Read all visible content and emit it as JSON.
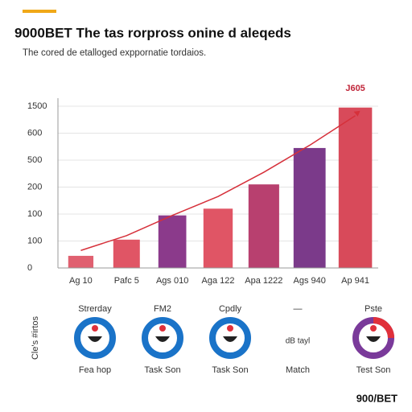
{
  "chart_data": {
    "type": "bar",
    "title": "9000BET The tas rorpross onine d aleqeds",
    "subtitle": "The cored de etalloged exppornatie tordaios.",
    "categories": [
      "Ag 10",
      "Pafc 5",
      "Ags 010",
      "Aga 122",
      "Apa 1222",
      "Ags 940",
      "Ap 941"
    ],
    "values": [
      0.45,
      1.05,
      1.95,
      2.2,
      3.1,
      4.45,
      5.95
    ],
    "colors": [
      "#e06070",
      "#e05565",
      "#8b3a8b",
      "#e05565",
      "#b8406f",
      "#7b3a8a",
      "#d84a5a"
    ],
    "line": {
      "color": "#d6303a",
      "values": [
        0.65,
        1.2,
        1.95,
        2.65,
        3.55,
        4.55,
        5.65
      ]
    },
    "annotation": "J605",
    "ylim": [
      0,
      6
    ],
    "yticks": [
      {
        "value": 0,
        "label": "0"
      },
      {
        "value": 1,
        "label": "100"
      },
      {
        "value": 2,
        "label": "100"
      },
      {
        "value": 3,
        "label": "200"
      },
      {
        "value": 4,
        "label": "500"
      },
      {
        "value": 5,
        "label": "600"
      },
      {
        "value": 6,
        "label": "1500"
      }
    ],
    "grid": true
  },
  "panel": {
    "side_label": "Cle's #irtos",
    "items": [
      {
        "top": "Strerday",
        "bottom": "Fea hop"
      },
      {
        "top": "FM2",
        "bottom": "Task Son"
      },
      {
        "top": "Cpdly",
        "bottom": "Task Son"
      },
      {
        "top": "—",
        "middle": "dB tayl",
        "bottom": "Match"
      },
      {
        "top": "Pste",
        "bottom": "Test Son"
      }
    ]
  },
  "footer": "900/BET"
}
